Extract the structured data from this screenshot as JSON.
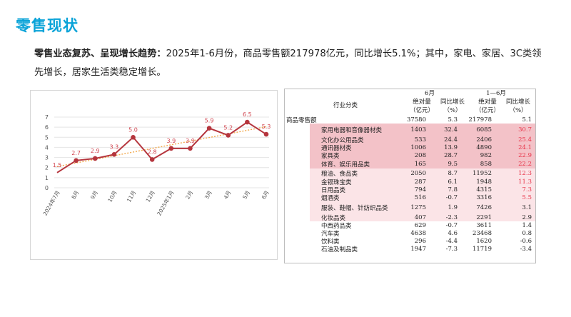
{
  "page": {
    "title": "零售现状",
    "summary_bold": "零售业态复苏、呈现增长趋势：",
    "summary_text": "2025年1-6月份，商品零售额217978亿元，同比增长5.1%；其中，家电、家居、3C类领先增长，居家生活类稳定增长。"
  },
  "chart_data": {
    "type": "line",
    "categories": [
      "2024年7月",
      "8月",
      "9月",
      "10月",
      "11月",
      "12月",
      "2025年1月",
      "2月",
      "3月",
      "4月",
      "5月",
      "6月"
    ],
    "series": [
      {
        "values": [
          1.5,
          2.7,
          2.9,
          3.3,
          5.0,
          2.8,
          3.9,
          3.9,
          5.9,
          5.2,
          6.5,
          5.3
        ],
        "color": "#b5353d"
      }
    ],
    "data_labels": [
      "1.5",
      "2.7",
      "2.9",
      "3.3",
      "5.0",
      "2.8",
      "3.9",
      "3.9",
      "5.9",
      "5.2",
      "6.5",
      "5.3"
    ],
    "y_ticks": [
      "0",
      "1",
      "2",
      "3",
      "4",
      "5",
      "6",
      "7"
    ],
    "ylim": [
      0,
      7
    ],
    "trendline": true,
    "trendline_color": "#f2a94d",
    "grid": true,
    "label_color": "#d0444e"
  },
  "table": {
    "header": {
      "category": "行业分类",
      "june": "6月",
      "h1": "1—6月",
      "abs": "绝对量",
      "unit": "（亿元）",
      "yoy": "同比增长",
      "pct": "（%）"
    },
    "rows": [
      {
        "name": "商品零售额",
        "indent": false,
        "v1": "37580",
        "g1": "5.3",
        "v2": "217978",
        "g2": "5.1",
        "bg": "none",
        "hl": false
      },
      {
        "name": "家用电器和音像器材类",
        "indent": true,
        "v1": "1403",
        "g1": "32.4",
        "v2": "6085",
        "g2": "30.7",
        "bg": "dark",
        "hl": true
      },
      {
        "name": "文化办公用品类",
        "indent": true,
        "v1": "533",
        "g1": "24.4",
        "v2": "2406",
        "g2": "25.4",
        "bg": "dark",
        "hl": true
      },
      {
        "name": "通讯器材类",
        "indent": true,
        "v1": "1006",
        "g1": "13.9",
        "v2": "4890",
        "g2": "24.1",
        "bg": "dark",
        "hl": true
      },
      {
        "name": "家具类",
        "indent": true,
        "v1": "208",
        "g1": "28.7",
        "v2": "982",
        "g2": "22.9",
        "bg": "dark",
        "hl": true
      },
      {
        "name": "体育、娱乐用品类",
        "indent": true,
        "v1": "165",
        "g1": "9.5",
        "v2": "858",
        "g2": "22.2",
        "bg": "dark",
        "hl": true
      },
      {
        "name": "粮油、食品类",
        "indent": true,
        "v1": "2050",
        "g1": "8.7",
        "v2": "11952",
        "g2": "12.3",
        "bg": "light",
        "hl": true
      },
      {
        "name": "金银珠宝类",
        "indent": true,
        "v1": "287",
        "g1": "6.1",
        "v2": "1948",
        "g2": "11.3",
        "bg": "light",
        "hl": true
      },
      {
        "name": "日用品类",
        "indent": true,
        "v1": "794",
        "g1": "7.8",
        "v2": "4315",
        "g2": "7.3",
        "bg": "light",
        "hl": true
      },
      {
        "name": "烟酒类",
        "indent": true,
        "v1": "516",
        "g1": "-0.7",
        "v2": "3316",
        "g2": "5.5",
        "bg": "light",
        "hl": true
      },
      {
        "name": "服装、鞋帽、针纺织品类",
        "indent": true,
        "v1": "1275",
        "g1": "1.9",
        "v2": "7426",
        "g2": "3.1",
        "bg": "light",
        "hl": false
      },
      {
        "name": "化妆品类",
        "indent": true,
        "v1": "407",
        "g1": "-2.3",
        "v2": "2291",
        "g2": "2.9",
        "bg": "light",
        "hl": false
      },
      {
        "name": "中西药品类",
        "indent": true,
        "v1": "629",
        "g1": "-0.7",
        "v2": "3611",
        "g2": "1.4",
        "bg": "none",
        "hl": false
      },
      {
        "name": "汽车类",
        "indent": true,
        "v1": "4638",
        "g1": "4.6",
        "v2": "23468",
        "g2": "0.8",
        "bg": "none",
        "hl": false
      },
      {
        "name": "饮料类",
        "indent": true,
        "v1": "296",
        "g1": "-4.4",
        "v2": "1620",
        "g2": "-0.6",
        "bg": "none",
        "hl": false
      },
      {
        "name": "石油及制品类",
        "indent": true,
        "v1": "1947",
        "g1": "-7.3",
        "v2": "11719",
        "g2": "-3.4",
        "bg": "none",
        "hl": false
      }
    ]
  }
}
